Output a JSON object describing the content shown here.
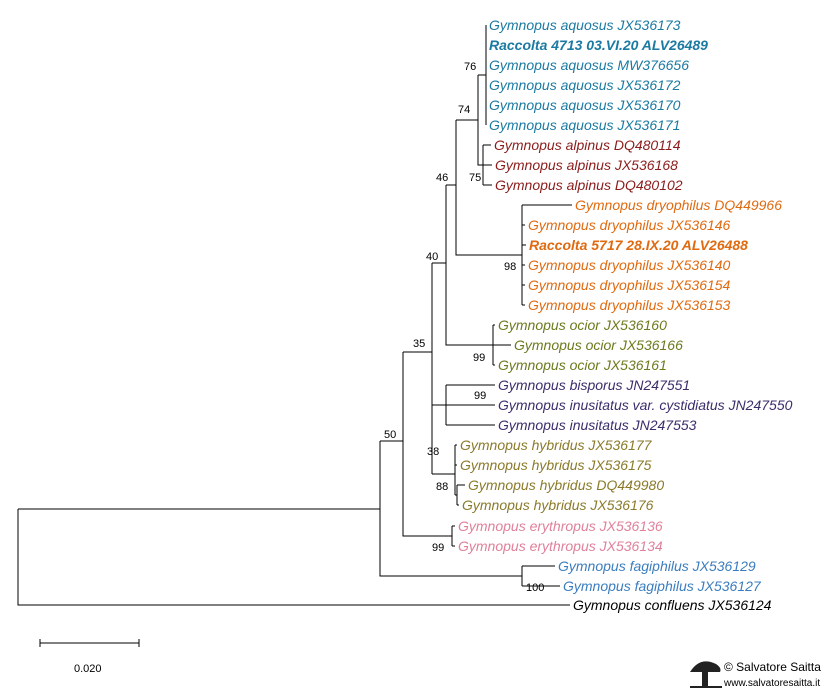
{
  "colors": {
    "aquosus": "#1b7aa2",
    "alpinus": "#8c1c1c",
    "dryophilus": "#e06a10",
    "ocior": "#6d7a1d",
    "inusitatus": "#3c2d6b",
    "hybridus": "#8a7a2a",
    "erythropus": "#e0809a",
    "fagiphilus": "#3a7dbf",
    "confluens": "#000000"
  },
  "taxa": [
    {
      "id": "t1",
      "label": "Gymnopus aquosus JX536173",
      "color": "aquosus",
      "bold": false
    },
    {
      "id": "t2",
      "label": "Raccolta 4713 03.VI.20 ALV26489",
      "color": "aquosus",
      "bold": true
    },
    {
      "id": "t3",
      "label": "Gymnopus aquosus MW376656",
      "color": "aquosus",
      "bold": false
    },
    {
      "id": "t4",
      "label": "Gymnopus aquosus JX536172",
      "color": "aquosus",
      "bold": false
    },
    {
      "id": "t5",
      "label": "Gymnopus aquosus JX536170",
      "color": "aquosus",
      "bold": false
    },
    {
      "id": "t6",
      "label": "Gymnopus aquosus JX536171",
      "color": "aquosus",
      "bold": false
    },
    {
      "id": "t7",
      "label": "Gymnopus alpinus DQ480114",
      "color": "alpinus",
      "bold": false
    },
    {
      "id": "t8",
      "label": "Gymnopus alpinus JX536168",
      "color": "alpinus",
      "bold": false
    },
    {
      "id": "t9",
      "label": "Gymnopus alpinus DQ480102",
      "color": "alpinus",
      "bold": false
    },
    {
      "id": "t10",
      "label": "Gymnopus dryophilus DQ449966",
      "color": "dryophilus",
      "bold": false
    },
    {
      "id": "t11",
      "label": "Gymnopus dryophilus JX536146",
      "color": "dryophilus",
      "bold": false
    },
    {
      "id": "t12",
      "label": "Raccolta 5717 28.IX.20 ALV26488",
      "color": "dryophilus",
      "bold": true
    },
    {
      "id": "t13",
      "label": "Gymnopus dryophilus JX536140",
      "color": "dryophilus",
      "bold": false
    },
    {
      "id": "t14",
      "label": "Gymnopus dryophilus JX536154",
      "color": "dryophilus",
      "bold": false
    },
    {
      "id": "t15",
      "label": "Gymnopus dryophilus JX536153",
      "color": "dryophilus",
      "bold": false
    },
    {
      "id": "t16",
      "label": "Gymnopus ocior JX536160",
      "color": "ocior",
      "bold": false
    },
    {
      "id": "t17",
      "label": "Gymnopus ocior JX536166",
      "color": "ocior",
      "bold": false
    },
    {
      "id": "t18",
      "label": "Gymnopus ocior JX536161",
      "color": "ocior",
      "bold": false
    },
    {
      "id": "t19",
      "label": "Gymnopus bisporus JN247551",
      "color": "inusitatus",
      "bold": false
    },
    {
      "id": "t20",
      "label": "Gymnopus inusitatus var. cystidiatus JN247550",
      "color": "inusitatus",
      "bold": false
    },
    {
      "id": "t21",
      "label": "Gymnopus inusitatus JN247553",
      "color": "inusitatus",
      "bold": false
    },
    {
      "id": "t22",
      "label": "Gymnopus hybridus JX536177",
      "color": "hybridus",
      "bold": false
    },
    {
      "id": "t23",
      "label": "Gymnopus hybridus JX536175",
      "color": "hybridus",
      "bold": false
    },
    {
      "id": "t24",
      "label": "Gymnopus hybridus DQ449980",
      "color": "hybridus",
      "bold": false
    },
    {
      "id": "t25",
      "label": "Gymnopus hybridus JX536176",
      "color": "hybridus",
      "bold": false
    },
    {
      "id": "t26",
      "label": "Gymnopus erythropus JX536136",
      "color": "erythropus",
      "bold": false
    },
    {
      "id": "t27",
      "label": "Gymnopus erythropus JX536134",
      "color": "erythropus",
      "bold": false
    },
    {
      "id": "t28",
      "label": "Gymnopus fagiphilus JX536129",
      "color": "fagiphilus",
      "bold": false
    },
    {
      "id": "t29",
      "label": "Gymnopus fagiphilus JX536127",
      "color": "fagiphilus",
      "bold": false
    },
    {
      "id": "t30",
      "label": "Gymnopus confluens JX536124",
      "color": "confluens",
      "bold": false
    }
  ],
  "support_values": [
    {
      "id": "n_aquosus",
      "value": "76"
    },
    {
      "id": "n_aq_alp",
      "value": "74"
    },
    {
      "id": "n_alpinus",
      "value": "75"
    },
    {
      "id": "n_46",
      "value": "46"
    },
    {
      "id": "n_dryophilus",
      "value": "98"
    },
    {
      "id": "n_40",
      "value": "40"
    },
    {
      "id": "n_ocior",
      "value": "99"
    },
    {
      "id": "n_35",
      "value": "35"
    },
    {
      "id": "n_inusitatus",
      "value": "99"
    },
    {
      "id": "n_hybridus_outer",
      "value": "38"
    },
    {
      "id": "n_hybridus",
      "value": "88"
    },
    {
      "id": "n_50",
      "value": "50"
    },
    {
      "id": "n_erythropus",
      "value": "99"
    },
    {
      "id": "n_fagiphilus",
      "value": "100"
    }
  ],
  "scale_bar": {
    "label": "0.020"
  },
  "watermark": {
    "name": "© Salvatore Saitta",
    "site": "www.salvatoresaitta.it",
    "logo_icon": "mushroom-logo-icon"
  }
}
